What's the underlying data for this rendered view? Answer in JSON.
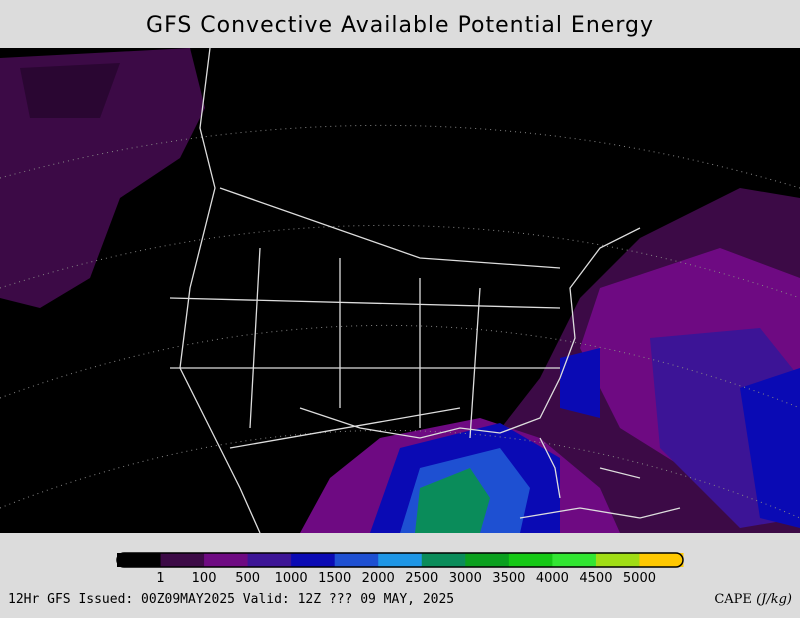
{
  "header": {
    "title": "GFS Convective Available Potential Energy"
  },
  "colorbar": {
    "colors": [
      "#000000",
      "#3c0a46",
      "#6e0a82",
      "#3c1496",
      "#0a0ab4",
      "#1e50d2",
      "#1e96e6",
      "#0a8c5a",
      "#0aa01e",
      "#14c814",
      "#32e632",
      "#a0dc14",
      "#ffc800"
    ],
    "labels": [
      "1",
      "100",
      "500",
      "1000",
      "1500",
      "2000",
      "2500",
      "3000",
      "3500",
      "4000",
      "4500",
      "5000"
    ]
  },
  "footer": {
    "issued": "12Hr GFS Issued: 00Z09MAY2025 Valid: 12Z ??? 09 MAY, 2025",
    "variable": "CAPE",
    "units": "(J/kg)"
  }
}
